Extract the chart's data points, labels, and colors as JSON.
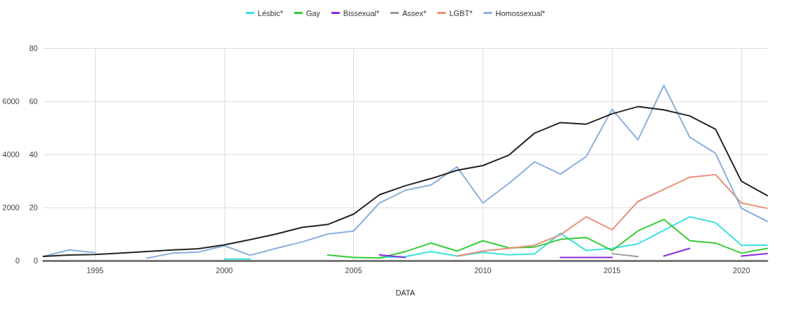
{
  "chart_data": {
    "type": "line",
    "xlabel": "DATA",
    "x": [
      1993,
      1994,
      1995,
      1996,
      1997,
      1998,
      1999,
      2000,
      2001,
      2002,
      2003,
      2004,
      2005,
      2006,
      2007,
      2008,
      2009,
      2010,
      2011,
      2012,
      2013,
      2014,
      2015,
      2016,
      2017,
      2018,
      2019,
      2020,
      2021
    ],
    "series": [
      {
        "name": "Lésbic*",
        "color": "#3ee0e0",
        "values": [
          null,
          null,
          null,
          null,
          null,
          null,
          null,
          0.6,
          0.6,
          null,
          null,
          null,
          null,
          1.2,
          1.5,
          3.4,
          1.7,
          3.1,
          2.2,
          2.5,
          10.3,
          3.8,
          4.6,
          6.3,
          11.4,
          16.5,
          14.3,
          5.8,
          5.8
        ]
      },
      {
        "name": "Gay",
        "color": "#33cc33",
        "values": [
          null,
          null,
          null,
          null,
          null,
          null,
          null,
          null,
          null,
          null,
          null,
          2.1,
          1.2,
          1.0,
          3.4,
          6.6,
          3.6,
          7.5,
          4.8,
          5.1,
          8.0,
          8.7,
          3.8,
          11.2,
          15.5,
          7.5,
          6.6,
          2.8,
          4.6
        ]
      },
      {
        "name": "Bissexual*",
        "color": "#8a2be2",
        "values": [
          null,
          null,
          null,
          null,
          null,
          null,
          null,
          null,
          null,
          null,
          null,
          null,
          null,
          2.2,
          1.2,
          null,
          null,
          null,
          null,
          null,
          1.2,
          1.2,
          1.2,
          null,
          1.7,
          4.6,
          null,
          1.7,
          2.6
        ]
      },
      {
        "name": "Assex*",
        "color": "#999999",
        "values": [
          null,
          null,
          null,
          null,
          null,
          null,
          null,
          null,
          null,
          null,
          null,
          null,
          null,
          null,
          null,
          null,
          null,
          null,
          null,
          null,
          null,
          null,
          2.6,
          1.5,
          null,
          null,
          null,
          null,
          null
        ]
      },
      {
        "name": "LGBT*",
        "color": "#e8907a",
        "values": [
          null,
          null,
          null,
          null,
          null,
          null,
          null,
          null,
          null,
          null,
          null,
          null,
          null,
          null,
          null,
          null,
          1.7,
          3.6,
          4.6,
          5.8,
          9.7,
          16.5,
          11.6,
          22.3,
          26.8,
          31.4,
          32.4,
          21.7,
          19.7
        ]
      },
      {
        "name": "Homossexual*",
        "color": "#8aaedc",
        "values": [
          1.6,
          4.0,
          3.0,
          null,
          0.9,
          2.8,
          3.2,
          5.6,
          2.0,
          4.6,
          7.0,
          10,
          11.1,
          21.7,
          26.5,
          28.5,
          35.3,
          21.7,
          29,
          37.2,
          32.6,
          39.2,
          57,
          45.5,
          66,
          46.5,
          40.4,
          19.7,
          14.8
        ]
      },
      {
        "color": "#222222",
        "axis": "y2",
        "values": [
          160,
          210,
          230,
          280,
          340,
          400,
          450,
          590,
          790,
          1000,
          1250,
          1360,
          1750,
          2480,
          2820,
          3090,
          3400,
          3580,
          3970,
          4800,
          5200,
          5140,
          5530,
          5800,
          5680,
          5450,
          4950,
          2990,
          2450
        ]
      }
    ],
    "xlim": [
      1993,
      2021
    ],
    "xticks": [
      1995,
      2000,
      2005,
      2010,
      2015,
      2020
    ],
    "ylim": [
      0,
      80
    ],
    "yticks": [
      0,
      20,
      40,
      60,
      80
    ],
    "y2lim": [
      0,
      8000
    ],
    "y2ticks": [
      0,
      2000,
      4000,
      6000
    ],
    "grid": true,
    "legend": "top",
    "marker": "none",
    "line_style": "solid"
  }
}
